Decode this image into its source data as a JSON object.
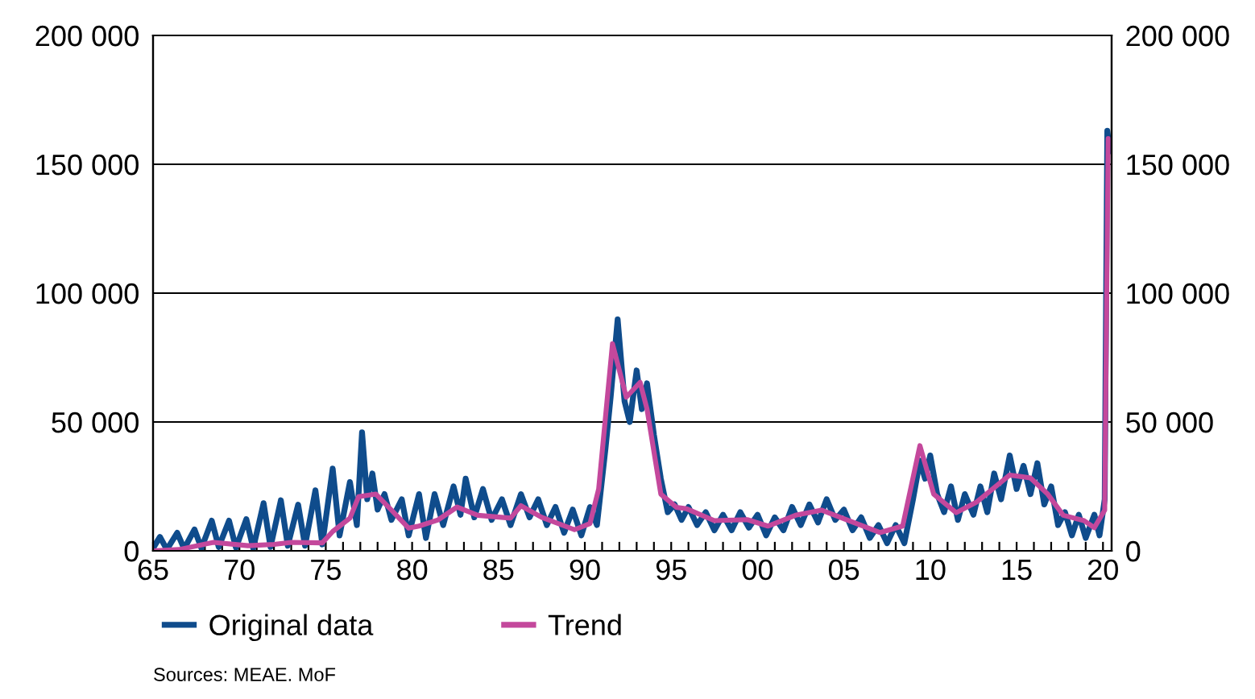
{
  "chart_data": {
    "type": "line",
    "xlim": [
      1965,
      2020.5
    ],
    "ylim": [
      0,
      200000
    ],
    "xticks": [
      {
        "value": 1965,
        "label": "65"
      },
      {
        "value": 1966,
        "label": null
      },
      {
        "value": 1967,
        "label": null
      },
      {
        "value": 1968,
        "label": null
      },
      {
        "value": 1969,
        "label": null
      },
      {
        "value": 1970,
        "label": "70"
      },
      {
        "value": 1971,
        "label": null
      },
      {
        "value": 1972,
        "label": null
      },
      {
        "value": 1973,
        "label": null
      },
      {
        "value": 1974,
        "label": null
      },
      {
        "value": 1975,
        "label": "75"
      },
      {
        "value": 1976,
        "label": null
      },
      {
        "value": 1977,
        "label": null
      },
      {
        "value": 1978,
        "label": null
      },
      {
        "value": 1979,
        "label": null
      },
      {
        "value": 1980,
        "label": "80"
      },
      {
        "value": 1981,
        "label": null
      },
      {
        "value": 1982,
        "label": null
      },
      {
        "value": 1983,
        "label": null
      },
      {
        "value": 1984,
        "label": null
      },
      {
        "value": 1985,
        "label": "85"
      },
      {
        "value": 1986,
        "label": null
      },
      {
        "value": 1987,
        "label": null
      },
      {
        "value": 1988,
        "label": null
      },
      {
        "value": 1989,
        "label": null
      },
      {
        "value": 1990,
        "label": "90"
      },
      {
        "value": 1991,
        "label": null
      },
      {
        "value": 1992,
        "label": null
      },
      {
        "value": 1993,
        "label": null
      },
      {
        "value": 1994,
        "label": null
      },
      {
        "value": 1995,
        "label": "95"
      },
      {
        "value": 1996,
        "label": null
      },
      {
        "value": 1997,
        "label": null
      },
      {
        "value": 1998,
        "label": null
      },
      {
        "value": 1999,
        "label": null
      },
      {
        "value": 2000,
        "label": "00"
      },
      {
        "value": 2001,
        "label": null
      },
      {
        "value": 2002,
        "label": null
      },
      {
        "value": 2003,
        "label": null
      },
      {
        "value": 2004,
        "label": null
      },
      {
        "value": 2005,
        "label": "05"
      },
      {
        "value": 2006,
        "label": null
      },
      {
        "value": 2007,
        "label": null
      },
      {
        "value": 2008,
        "label": null
      },
      {
        "value": 2009,
        "label": null
      },
      {
        "value": 2010,
        "label": "10"
      },
      {
        "value": 2011,
        "label": null
      },
      {
        "value": 2012,
        "label": null
      },
      {
        "value": 2013,
        "label": null
      },
      {
        "value": 2014,
        "label": null
      },
      {
        "value": 2015,
        "label": "15"
      },
      {
        "value": 2016,
        "label": null
      },
      {
        "value": 2017,
        "label": null
      },
      {
        "value": 2018,
        "label": null
      },
      {
        "value": 2019,
        "label": null
      },
      {
        "value": 2020,
        "label": "20"
      }
    ],
    "yticks": [
      0,
      {
        "value": 50000,
        "label": "50 000"
      },
      {
        "value": 100000,
        "label": "100 000"
      },
      {
        "value": 150000,
        "label": "150 000"
      },
      {
        "value": 200000,
        "label": "200 000"
      }
    ],
    "y2lim": [
      0,
      200000
    ],
    "y2ticks": [
      0,
      {
        "value": 50000,
        "label": "50 000"
      },
      {
        "value": 100000,
        "label": "100 000"
      },
      {
        "value": 150000,
        "label": "150 000"
      },
      {
        "value": 200000,
        "label": "200 000"
      }
    ],
    "grid": "y",
    "legend": "bottom",
    "marker": "none",
    "line_style": "solid",
    "annotations": [
      "Sources: MEAE. MoF"
    ],
    "series": [
      {
        "name": "Original data",
        "color": "#0f4c8c",
        "x": [
          1965.0,
          1965.4,
          1965.8,
          1966.4,
          1966.8,
          1967.4,
          1967.8,
          1968.4,
          1968.8,
          1969.4,
          1969.8,
          1970.4,
          1970.8,
          1971.4,
          1971.8,
          1972.4,
          1972.8,
          1973.4,
          1973.8,
          1974.4,
          1974.8,
          1975.4,
          1975.8,
          1976.4,
          1976.8,
          1977.1,
          1977.4,
          1977.7,
          1978.0,
          1978.4,
          1978.8,
          1979.4,
          1979.8,
          1980.4,
          1980.8,
          1981.3,
          1981.8,
          1982.4,
          1982.8,
          1983.1,
          1983.6,
          1984.1,
          1984.6,
          1985.2,
          1985.7,
          1986.3,
          1986.8,
          1987.3,
          1987.8,
          1988.3,
          1988.8,
          1989.3,
          1989.8,
          1990.3,
          1990.7,
          1991.2,
          1991.5,
          1991.9,
          1992.3,
          1992.6,
          1993.0,
          1993.3,
          1993.6,
          1994.0,
          1994.4,
          1994.8,
          1995.2,
          1995.6,
          1996.0,
          1996.5,
          1997.0,
          1997.5,
          1998.0,
          1998.5,
          1999.0,
          1999.5,
          2000.0,
          2000.5,
          2001.0,
          2001.5,
          2002.0,
          2002.5,
          2003.0,
          2003.5,
          2004.0,
          2004.5,
          2005.0,
          2005.5,
          2006.0,
          2006.5,
          2007.0,
          2007.5,
          2008.0,
          2008.5,
          2009.0,
          2009.4,
          2009.7,
          2010.0,
          2010.4,
          2010.8,
          2011.2,
          2011.6,
          2012.0,
          2012.5,
          2012.9,
          2013.3,
          2013.7,
          2014.1,
          2014.6,
          2015.0,
          2015.4,
          2015.8,
          2016.2,
          2016.6,
          2017.0,
          2017.4,
          2017.8,
          2018.2,
          2018.6,
          2019.0,
          2019.5,
          2019.8,
          2020.1,
          2020.25,
          2020.4
        ],
        "values": [
          1000,
          5400,
          500,
          7000,
          800,
          8300,
          1000,
          11700,
          1500,
          11700,
          1200,
          12300,
          1000,
          18500,
          1500,
          19600,
          2000,
          17900,
          2000,
          23500,
          2500,
          31900,
          6000,
          26700,
          10000,
          46000,
          20000,
          30000,
          16000,
          22000,
          12000,
          20000,
          6000,
          22000,
          5000,
          22000,
          10000,
          25000,
          14000,
          28000,
          13000,
          24000,
          12000,
          20000,
          10000,
          22000,
          13000,
          20000,
          10000,
          17000,
          7000,
          16000,
          6000,
          17000,
          10000,
          40000,
          60000,
          89800,
          58000,
          50000,
          70000,
          55000,
          65000,
          45000,
          28000,
          15000,
          18000,
          12000,
          17000,
          10000,
          15000,
          8000,
          14000,
          8000,
          15000,
          9000,
          14000,
          6000,
          13000,
          8000,
          17000,
          10000,
          18000,
          11000,
          20000,
          12000,
          16000,
          8000,
          13000,
          5000,
          10000,
          3000,
          10000,
          3000,
          20000,
          35000,
          28000,
          37000,
          22000,
          15000,
          25000,
          12000,
          22000,
          14000,
          25000,
          15000,
          30000,
          20000,
          37000,
          24000,
          33000,
          22000,
          34000,
          18000,
          25000,
          10000,
          15000,
          6000,
          14000,
          5000,
          14000,
          6000,
          20000,
          163000,
          155000
        ]
      },
      {
        "name": "Trend",
        "color": "#c4489c",
        "x": [
          1965,
          1966.5,
          1968.5,
          1970.5,
          1972,
          1973,
          1974.8,
          1975.4,
          1976.4,
          1976.9,
          1977.9,
          1978.8,
          1979.8,
          1980.4,
          1981.5,
          1982.6,
          1983.8,
          1985.7,
          1986.3,
          1987.5,
          1989.4,
          1990.3,
          1990.8,
          1991.6,
          1992.4,
          1993.2,
          1993.6,
          1994.4,
          1995.3,
          1995.9,
          1997.5,
          1999.4,
          2000.6,
          2002.2,
          2003.7,
          2005.3,
          2007.1,
          2008.4,
          2009.4,
          2010.2,
          2011.5,
          2012.7,
          2014.6,
          2015.8,
          2016.8,
          2017.7,
          2018.9,
          2019.5,
          2020.1,
          2020.3
        ],
        "values": [
          0,
          500,
          3300,
          2000,
          2500,
          3300,
          3100,
          7500,
          12700,
          21000,
          22000,
          15800,
          8800,
          9600,
          12000,
          17000,
          13800,
          12700,
          17500,
          13000,
          8200,
          10600,
          24000,
          80400,
          59600,
          65400,
          55000,
          22000,
          16900,
          16300,
          11700,
          12100,
          9600,
          13800,
          15800,
          11700,
          7100,
          9600,
          40800,
          22000,
          14800,
          19000,
          29400,
          28300,
          22000,
          13800,
          11700,
          9000,
          15800,
          160000
        ]
      }
    ]
  }
}
